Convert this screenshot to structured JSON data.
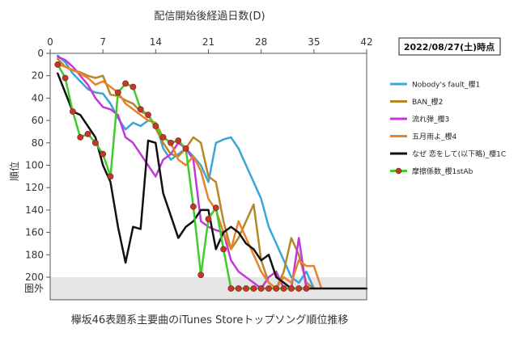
{
  "chart_data": {
    "type": "line",
    "title": "配信開始後経過日数(D)",
    "subtitle": "欅坂46表題系主要曲のiTunes Storeトップソング順位推移",
    "date_label": "2022/08/27(土)時点",
    "ylabel": "順位",
    "out_label": "圏外",
    "xlim": [
      0,
      42
    ],
    "ylim": [
      0,
      210
    ],
    "y_reversed": true,
    "x_axis_position": "top",
    "x_ticks": [
      0,
      7,
      14,
      21,
      28,
      35,
      42
    ],
    "y_ticks": [
      0,
      20,
      40,
      60,
      80,
      100,
      120,
      140,
      160,
      180,
      200
    ],
    "out_value": 210,
    "grid": false,
    "legend_position": "right",
    "series": [
      {
        "name": "Nobody's fault_櫻1",
        "color": "#3aa6d8",
        "marker": false,
        "points": [
          [
            1,
            2
          ],
          [
            2,
            8
          ],
          [
            3,
            18
          ],
          [
            4,
            25
          ],
          [
            5,
            32
          ],
          [
            6,
            35
          ],
          [
            7,
            36
          ],
          [
            8,
            45
          ],
          [
            9,
            58
          ],
          [
            10,
            68
          ],
          [
            11,
            62
          ],
          [
            12,
            65
          ],
          [
            13,
            60
          ],
          [
            14,
            62
          ],
          [
            15,
            85
          ],
          [
            16,
            95
          ],
          [
            17,
            90
          ],
          [
            18,
            85
          ],
          [
            19,
            92
          ],
          [
            20,
            100
          ],
          [
            21,
            115
          ],
          [
            22,
            80
          ],
          [
            23,
            77
          ],
          [
            24,
            75
          ],
          [
            25,
            85
          ],
          [
            26,
            100
          ],
          [
            27,
            115
          ],
          [
            28,
            130
          ],
          [
            29,
            155
          ],
          [
            30,
            170
          ],
          [
            31,
            185
          ],
          [
            32,
            200
          ],
          [
            33,
            205
          ],
          [
            34,
            195
          ],
          [
            35,
            210
          ]
        ]
      },
      {
        "name": "BAN_櫻2",
        "color": "#b8862a",
        "marker": false,
        "points": [
          [
            1,
            5
          ],
          [
            2,
            12
          ],
          [
            3,
            15
          ],
          [
            4,
            17
          ],
          [
            5,
            20
          ],
          [
            6,
            22
          ],
          [
            7,
            20
          ],
          [
            8,
            37
          ],
          [
            9,
            38
          ],
          [
            10,
            42
          ],
          [
            11,
            45
          ],
          [
            12,
            52
          ],
          [
            13,
            55
          ],
          [
            14,
            67
          ],
          [
            15,
            80
          ],
          [
            16,
            90
          ],
          [
            17,
            92
          ],
          [
            18,
            85
          ],
          [
            19,
            75
          ],
          [
            20,
            80
          ],
          [
            21,
            110
          ],
          [
            22,
            115
          ],
          [
            23,
            150
          ],
          [
            24,
            175
          ],
          [
            25,
            165
          ],
          [
            26,
            150
          ],
          [
            27,
            135
          ],
          [
            28,
            185
          ],
          [
            29,
            205
          ],
          [
            30,
            210
          ],
          [
            31,
            195
          ],
          [
            32,
            165
          ],
          [
            33,
            180
          ],
          [
            34,
            205
          ],
          [
            35,
            210
          ]
        ]
      },
      {
        "name": "流れ弾_櫻3",
        "color": "#c23ad6",
        "marker": false,
        "points": [
          [
            1,
            3
          ],
          [
            2,
            6
          ],
          [
            3,
            12
          ],
          [
            4,
            20
          ],
          [
            5,
            28
          ],
          [
            6,
            40
          ],
          [
            7,
            48
          ],
          [
            8,
            50
          ],
          [
            9,
            55
          ],
          [
            10,
            75
          ],
          [
            11,
            80
          ],
          [
            12,
            90
          ],
          [
            13,
            100
          ],
          [
            14,
            110
          ],
          [
            15,
            95
          ],
          [
            16,
            90
          ],
          [
            17,
            80
          ],
          [
            18,
            85
          ],
          [
            19,
            95
          ],
          [
            20,
            150
          ],
          [
            21,
            155
          ],
          [
            22,
            158
          ],
          [
            23,
            160
          ],
          [
            24,
            185
          ],
          [
            25,
            195
          ],
          [
            26,
            200
          ],
          [
            27,
            205
          ],
          [
            28,
            210
          ],
          [
            29,
            200
          ],
          [
            30,
            195
          ],
          [
            31,
            210
          ],
          [
            32,
            210
          ],
          [
            33,
            165
          ],
          [
            34,
            210
          ]
        ]
      },
      {
        "name": "五月雨よ_櫻4",
        "color": "#e8832c",
        "marker": false,
        "points": [
          [
            1,
            10
          ],
          [
            2,
            12
          ],
          [
            3,
            15
          ],
          [
            4,
            18
          ],
          [
            5,
            22
          ],
          [
            6,
            28
          ],
          [
            7,
            25
          ],
          [
            8,
            30
          ],
          [
            9,
            35
          ],
          [
            10,
            45
          ],
          [
            11,
            50
          ],
          [
            12,
            55
          ],
          [
            13,
            60
          ],
          [
            14,
            62
          ],
          [
            15,
            75
          ],
          [
            16,
            80
          ],
          [
            17,
            95
          ],
          [
            18,
            100
          ],
          [
            19,
            92
          ],
          [
            20,
            105
          ],
          [
            21,
            130
          ],
          [
            22,
            140
          ],
          [
            23,
            160
          ],
          [
            24,
            175
          ],
          [
            25,
            150
          ],
          [
            26,
            165
          ],
          [
            27,
            180
          ],
          [
            28,
            195
          ],
          [
            29,
            205
          ],
          [
            30,
            210
          ],
          [
            31,
            200
          ],
          [
            32,
            205
          ],
          [
            33,
            185
          ],
          [
            34,
            190
          ],
          [
            35,
            190
          ],
          [
            36,
            210
          ]
        ]
      },
      {
        "name": "なぜ 恋をして(以下略)_櫻1C",
        "color": "#111111",
        "marker": false,
        "points": [
          [
            1,
            18
          ],
          [
            2,
            35
          ],
          [
            3,
            52
          ],
          [
            4,
            55
          ],
          [
            5,
            65
          ],
          [
            6,
            75
          ],
          [
            7,
            100
          ],
          [
            8,
            115
          ],
          [
            9,
            155
          ],
          [
            10,
            187
          ],
          [
            11,
            155
          ],
          [
            12,
            157
          ],
          [
            13,
            78
          ],
          [
            14,
            80
          ],
          [
            15,
            125
          ],
          [
            16,
            145
          ],
          [
            17,
            165
          ],
          [
            18,
            155
          ],
          [
            19,
            150
          ],
          [
            20,
            140
          ],
          [
            21,
            140
          ],
          [
            22,
            175
          ],
          [
            23,
            160
          ],
          [
            24,
            155
          ],
          [
            25,
            160
          ],
          [
            26,
            170
          ],
          [
            27,
            175
          ],
          [
            28,
            185
          ],
          [
            29,
            180
          ],
          [
            30,
            200
          ],
          [
            31,
            205
          ],
          [
            32,
            210
          ],
          [
            33,
            210
          ],
          [
            34,
            210
          ],
          [
            35,
            210
          ],
          [
            36,
            210
          ],
          [
            37,
            210
          ],
          [
            38,
            210
          ],
          [
            39,
            210
          ],
          [
            40,
            210
          ],
          [
            41,
            210
          ],
          [
            42,
            210
          ]
        ]
      },
      {
        "name": "摩擦係数_櫻1stAb",
        "color": "#3fcc2a",
        "marker": true,
        "marker_color": "#c0392b",
        "points": [
          [
            1,
            10
          ],
          [
            2,
            22
          ],
          [
            3,
            52
          ],
          [
            4,
            75
          ],
          [
            5,
            72
          ],
          [
            6,
            80
          ],
          [
            7,
            90
          ],
          [
            8,
            110
          ],
          [
            9,
            35
          ],
          [
            10,
            27
          ],
          [
            11,
            30
          ],
          [
            12,
            50
          ],
          [
            13,
            55
          ],
          [
            14,
            65
          ],
          [
            15,
            75
          ],
          [
            16,
            80
          ],
          [
            17,
            78
          ],
          [
            18,
            85
          ],
          [
            19,
            137
          ],
          [
            20,
            198
          ],
          [
            21,
            148
          ],
          [
            22,
            138
          ],
          [
            23,
            175
          ],
          [
            24,
            210
          ],
          [
            25,
            210
          ],
          [
            26,
            210
          ],
          [
            27,
            210
          ],
          [
            28,
            210
          ],
          [
            29,
            210
          ],
          [
            30,
            210
          ],
          [
            31,
            210
          ],
          [
            32,
            210
          ],
          [
            33,
            210
          ],
          [
            34,
            210
          ]
        ]
      }
    ]
  }
}
